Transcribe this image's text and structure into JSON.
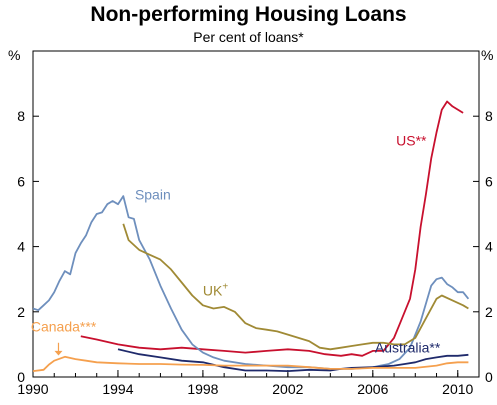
{
  "chart_data": {
    "type": "line",
    "title": "Non-performing Housing Loans",
    "subtitle": "Per cent of loans*",
    "y_unit_left": "%",
    "y_unit_right": "%",
    "xlim": [
      1990,
      2011
    ],
    "ylim": [
      0,
      10
    ],
    "x_ticks": [
      1990,
      1994,
      1998,
      2002,
      2006,
      2010
    ],
    "x_tick_labels": [
      "1990",
      "1994",
      "1998",
      "2002",
      "2006",
      "2010"
    ],
    "y_ticks": [
      0,
      2,
      4,
      6,
      8
    ],
    "y_tick_labels": [
      "0",
      "2",
      "4",
      "6",
      "8"
    ],
    "grid": false,
    "legend": "labels placed on chart",
    "series": [
      {
        "name": "US**",
        "color": "#c8102e",
        "points": [
          [
            1992.25,
            1.25
          ],
          [
            1993,
            1.15
          ],
          [
            1994,
            1.0
          ],
          [
            1995,
            0.9
          ],
          [
            1996,
            0.85
          ],
          [
            1997,
            0.9
          ],
          [
            1998,
            0.85
          ],
          [
            1999,
            0.8
          ],
          [
            2000,
            0.75
          ],
          [
            2001,
            0.8
          ],
          [
            2002,
            0.85
          ],
          [
            2003,
            0.8
          ],
          [
            2003.75,
            0.7
          ],
          [
            2004.5,
            0.65
          ],
          [
            2005,
            0.7
          ],
          [
            2005.5,
            0.65
          ],
          [
            2006,
            0.8
          ],
          [
            2006.5,
            0.8
          ],
          [
            2007,
            1.2
          ],
          [
            2007.25,
            1.6
          ],
          [
            2007.75,
            2.4
          ],
          [
            2008,
            3.3
          ],
          [
            2008.25,
            4.6
          ],
          [
            2008.5,
            5.6
          ],
          [
            2008.75,
            6.7
          ],
          [
            2009,
            7.5
          ],
          [
            2009.25,
            8.2
          ],
          [
            2009.5,
            8.45
          ],
          [
            2009.75,
            8.3
          ],
          [
            2010.25,
            8.1
          ]
        ]
      },
      {
        "name": "Spain",
        "color": "#6e8fbd",
        "points": [
          [
            1990,
            2.1
          ],
          [
            1990.25,
            2.05
          ],
          [
            1990.5,
            2.2
          ],
          [
            1990.75,
            2.35
          ],
          [
            1991,
            2.6
          ],
          [
            1991.25,
            2.95
          ],
          [
            1991.5,
            3.25
          ],
          [
            1991.75,
            3.15
          ],
          [
            1992,
            3.8
          ],
          [
            1992.25,
            4.1
          ],
          [
            1992.5,
            4.35
          ],
          [
            1992.75,
            4.75
          ],
          [
            1993,
            5.0
          ],
          [
            1993.25,
            5.05
          ],
          [
            1993.5,
            5.3
          ],
          [
            1993.75,
            5.4
          ],
          [
            1994,
            5.3
          ],
          [
            1994.25,
            5.55
          ],
          [
            1994.5,
            4.9
          ],
          [
            1994.75,
            4.85
          ],
          [
            1995,
            4.2
          ],
          [
            1995.5,
            3.6
          ],
          [
            1996,
            2.8
          ],
          [
            1996.5,
            2.1
          ],
          [
            1997,
            1.45
          ],
          [
            1997.5,
            1.0
          ],
          [
            1998,
            0.75
          ],
          [
            1998.5,
            0.6
          ],
          [
            1999,
            0.5
          ],
          [
            2000,
            0.4
          ],
          [
            2001,
            0.35
          ],
          [
            2002,
            0.3
          ],
          [
            2003,
            0.3
          ],
          [
            2004,
            0.25
          ],
          [
            2005,
            0.25
          ],
          [
            2006,
            0.3
          ],
          [
            2006.75,
            0.4
          ],
          [
            2007.25,
            0.55
          ],
          [
            2007.75,
            0.9
          ],
          [
            2008.25,
            1.7
          ],
          [
            2008.75,
            2.8
          ],
          [
            2009,
            3.0
          ],
          [
            2009.25,
            3.05
          ],
          [
            2009.5,
            2.85
          ],
          [
            2009.75,
            2.75
          ],
          [
            2010,
            2.6
          ],
          [
            2010.25,
            2.6
          ],
          [
            2010.5,
            2.4
          ]
        ]
      },
      {
        "name": "UK+",
        "color": "#a08a35",
        "points": [
          [
            1994.25,
            4.7
          ],
          [
            1994.5,
            4.2
          ],
          [
            1995,
            3.9
          ],
          [
            1995.5,
            3.75
          ],
          [
            1996,
            3.6
          ],
          [
            1996.5,
            3.3
          ],
          [
            1997,
            2.9
          ],
          [
            1997.5,
            2.5
          ],
          [
            1998,
            2.2
          ],
          [
            1998.5,
            2.1
          ],
          [
            1999,
            2.15
          ],
          [
            1999.5,
            2.0
          ],
          [
            2000,
            1.65
          ],
          [
            2000.5,
            1.5
          ],
          [
            2001,
            1.45
          ],
          [
            2001.5,
            1.4
          ],
          [
            2002,
            1.3
          ],
          [
            2002.5,
            1.2
          ],
          [
            2003,
            1.1
          ],
          [
            2003.5,
            0.9
          ],
          [
            2004,
            0.85
          ],
          [
            2004.5,
            0.9
          ],
          [
            2005,
            0.95
          ],
          [
            2005.5,
            1.0
          ],
          [
            2006,
            1.05
          ],
          [
            2006.5,
            1.05
          ],
          [
            2007,
            1.0
          ],
          [
            2007.5,
            1.0
          ],
          [
            2008,
            1.2
          ],
          [
            2008.5,
            1.8
          ],
          [
            2009,
            2.4
          ],
          [
            2009.25,
            2.5
          ],
          [
            2009.75,
            2.35
          ],
          [
            2010.25,
            2.2
          ],
          [
            2010.5,
            2.1
          ]
        ]
      },
      {
        "name": "Australia**",
        "color": "#1f2a6b",
        "points": [
          [
            1994,
            0.85
          ],
          [
            1995,
            0.7
          ],
          [
            1996,
            0.6
          ],
          [
            1997,
            0.5
          ],
          [
            1998,
            0.45
          ],
          [
            1999,
            0.3
          ],
          [
            2000,
            0.2
          ],
          [
            2001,
            0.2
          ],
          [
            2002,
            0.18
          ],
          [
            2003,
            0.22
          ],
          [
            2004,
            0.2
          ],
          [
            2004.5,
            0.25
          ],
          [
            2005,
            0.28
          ],
          [
            2006,
            0.3
          ],
          [
            2007,
            0.35
          ],
          [
            2007.5,
            0.4
          ],
          [
            2008,
            0.45
          ],
          [
            2008.5,
            0.55
          ],
          [
            2009,
            0.6
          ],
          [
            2009.5,
            0.65
          ],
          [
            2010,
            0.65
          ],
          [
            2010.5,
            0.68
          ]
        ]
      },
      {
        "name": "Canada***",
        "color": "#f5a04e",
        "points": [
          [
            1990,
            0.18
          ],
          [
            1990.5,
            0.22
          ],
          [
            1990.75,
            0.38
          ],
          [
            1991,
            0.5
          ],
          [
            1991.5,
            0.62
          ],
          [
            1992,
            0.55
          ],
          [
            1992.5,
            0.5
          ],
          [
            1993,
            0.45
          ],
          [
            1994,
            0.42
          ],
          [
            1995,
            0.4
          ],
          [
            1996,
            0.4
          ],
          [
            1997,
            0.38
          ],
          [
            1998,
            0.37
          ],
          [
            1999,
            0.35
          ],
          [
            2000,
            0.35
          ],
          [
            2001,
            0.35
          ],
          [
            2002,
            0.35
          ],
          [
            2003,
            0.3
          ],
          [
            2004,
            0.25
          ],
          [
            2005,
            0.25
          ],
          [
            2006,
            0.28
          ],
          [
            2007,
            0.28
          ],
          [
            2008,
            0.28
          ],
          [
            2009,
            0.35
          ],
          [
            2009.5,
            0.42
          ],
          [
            2010,
            0.45
          ],
          [
            2010.5,
            0.45
          ]
        ]
      }
    ],
    "annotations": [
      {
        "text": "US**",
        "series": 0,
        "x": 2007.1,
        "y": 7.1
      },
      {
        "text": "Spain",
        "series": 1,
        "x": 1994.8,
        "y": 5.45
      },
      {
        "text": "UK",
        "sup": "+",
        "series": 2,
        "x": 1998,
        "y": 2.5
      },
      {
        "text": "Australia**",
        "series": 3,
        "x": 2006.1,
        "y": 0.75
      },
      {
        "text": "Canada***",
        "series": 4,
        "x": 1989.9,
        "y": 1.4
      }
    ]
  }
}
